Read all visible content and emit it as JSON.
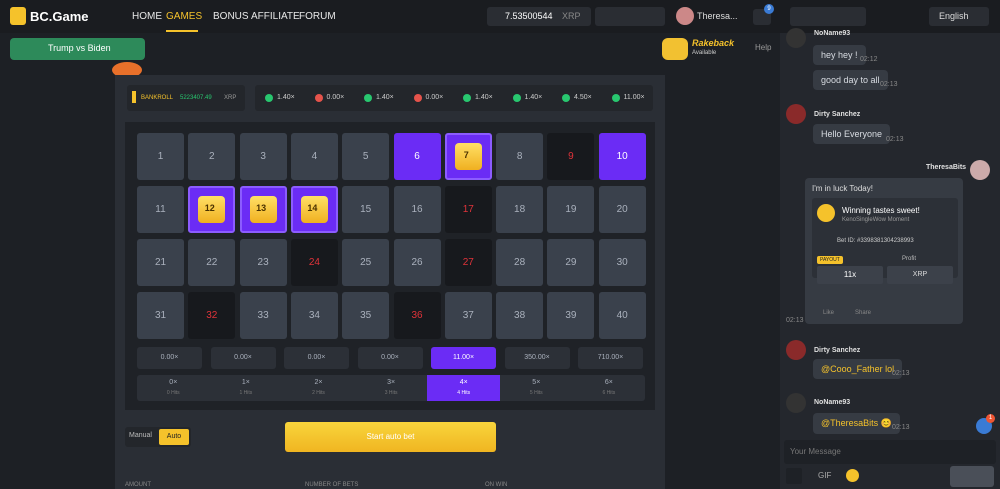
{
  "nav": {
    "logo": "BC.Game",
    "links": [
      "HOME",
      "GAMES",
      "BONUS",
      "AFFILIATE",
      "FORUM"
    ],
    "active_link": "GAMES",
    "balance": "7.53500544",
    "currency": "XRP",
    "user": "Theresa...",
    "notifications": "9",
    "language": "English"
  },
  "promo": {
    "banner": "Trump vs Biden",
    "rakeback": "Rakeback",
    "rakeback_status": "Available",
    "help": "Help"
  },
  "game": {
    "bankroll_label": "BANKROLL",
    "bankroll": "5223407.49",
    "bankroll_currency": "XRP",
    "history": [
      {
        "label": "1.40×",
        "result": "win"
      },
      {
        "label": "0.00×",
        "result": "loss"
      },
      {
        "label": "1.40×",
        "result": "win"
      },
      {
        "label": "0.00×",
        "result": "loss"
      },
      {
        "label": "1.40×",
        "result": "win"
      },
      {
        "label": "1.40×",
        "result": "win"
      },
      {
        "label": "4.50×",
        "result": "win"
      },
      {
        "label": "11.00×",
        "result": "win"
      }
    ],
    "cells": [
      {
        "label": "1",
        "state": "idle"
      },
      {
        "label": "2",
        "state": "idle"
      },
      {
        "label": "3",
        "state": "idle"
      },
      {
        "label": "4",
        "state": "idle"
      },
      {
        "label": "5",
        "state": "idle"
      },
      {
        "label": "6",
        "state": "selected"
      },
      {
        "label": "7",
        "state": "gem"
      },
      {
        "label": "8",
        "state": "idle"
      },
      {
        "label": "9",
        "state": "miss"
      },
      {
        "label": "10",
        "state": "selected"
      },
      {
        "label": "11",
        "state": "idle"
      },
      {
        "label": "12",
        "state": "gem"
      },
      {
        "label": "13",
        "state": "gem"
      },
      {
        "label": "14",
        "state": "gem"
      },
      {
        "label": "15",
        "state": "idle"
      },
      {
        "label": "16",
        "state": "idle"
      },
      {
        "label": "17",
        "state": "miss"
      },
      {
        "label": "18",
        "state": "idle"
      },
      {
        "label": "19",
        "state": "idle"
      },
      {
        "label": "20",
        "state": "idle"
      },
      {
        "label": "21",
        "state": "idle"
      },
      {
        "label": "22",
        "state": "idle"
      },
      {
        "label": "23",
        "state": "idle"
      },
      {
        "label": "24",
        "state": "miss"
      },
      {
        "label": "25",
        "state": "idle"
      },
      {
        "label": "26",
        "state": "idle"
      },
      {
        "label": "27",
        "state": "miss"
      },
      {
        "label": "28",
        "state": "idle"
      },
      {
        "label": "29",
        "state": "idle"
      },
      {
        "label": "30",
        "state": "idle"
      },
      {
        "label": "31",
        "state": "idle"
      },
      {
        "label": "32",
        "state": "miss"
      },
      {
        "label": "33",
        "state": "idle"
      },
      {
        "label": "34",
        "state": "idle"
      },
      {
        "label": "35",
        "state": "idle"
      },
      {
        "label": "36",
        "state": "miss"
      },
      {
        "label": "37",
        "state": "idle"
      },
      {
        "label": "38",
        "state": "idle"
      },
      {
        "label": "39",
        "state": "idle"
      },
      {
        "label": "40",
        "state": "idle"
      }
    ],
    "payouts": [
      {
        "label": "0.00×",
        "active": false
      },
      {
        "label": "0.00×",
        "active": false
      },
      {
        "label": "0.00×",
        "active": false
      },
      {
        "label": "0.00×",
        "active": false
      },
      {
        "label": "11.00×",
        "active": true
      },
      {
        "label": "350.00×",
        "active": false
      },
      {
        "label": "710.00×",
        "active": false
      }
    ],
    "hits": [
      {
        "multiplier": "0×",
        "label": "0 Hits",
        "active": false
      },
      {
        "multiplier": "1×",
        "label": "1 Hits",
        "active": false
      },
      {
        "multiplier": "2×",
        "label": "2 Hits",
        "active": false
      },
      {
        "multiplier": "3×",
        "label": "3 Hits",
        "active": false
      },
      {
        "multiplier": "4×",
        "label": "4 Hits",
        "active": true
      },
      {
        "multiplier": "5×",
        "label": "5 Hits",
        "active": false
      },
      {
        "multiplier": "6×",
        "label": "6 Hits",
        "active": false
      }
    ],
    "modes": [
      "Manual",
      "Auto"
    ],
    "start_button": "Start auto bet",
    "fields": [
      "AMOUNT",
      "NUMBER OF BETS",
      "ON WIN"
    ]
  },
  "chat": {
    "messages": [
      {
        "user": "NoName93",
        "lines": [
          {
            "text": "hey hey !",
            "time": "02:12"
          },
          {
            "text": "good day to all",
            "time": "02:13"
          }
        ]
      },
      {
        "user": "Dirty Sanchez",
        "lines": [
          {
            "text": "Hello Everyone",
            "time": "02:13"
          }
        ]
      },
      {
        "user": "TheresaBits",
        "card": {
          "title": "I'm in luck Today!",
          "headline": "Winning tastes sweet!",
          "subtitle": "KenoSingleWow Moment",
          "bet_id": "Bet ID: #3398381304238993",
          "payout_label": "PAYOUT",
          "payout": "11x",
          "profit_label": "Profit",
          "profit_currency": "XRP",
          "like": "Like",
          "share": "Share"
        },
        "time": "02:13"
      },
      {
        "user": "Dirty Sanchez",
        "lines": [
          {
            "text": "@Cooo_Father lol",
            "time": "02:13"
          }
        ]
      },
      {
        "user": "NoName93",
        "lines": [
          {
            "text": "@TheresaBits 😊",
            "time": "02:13"
          }
        ]
      }
    ],
    "badge": "1",
    "input_placeholder": "Your Message",
    "gif": "GIF"
  }
}
